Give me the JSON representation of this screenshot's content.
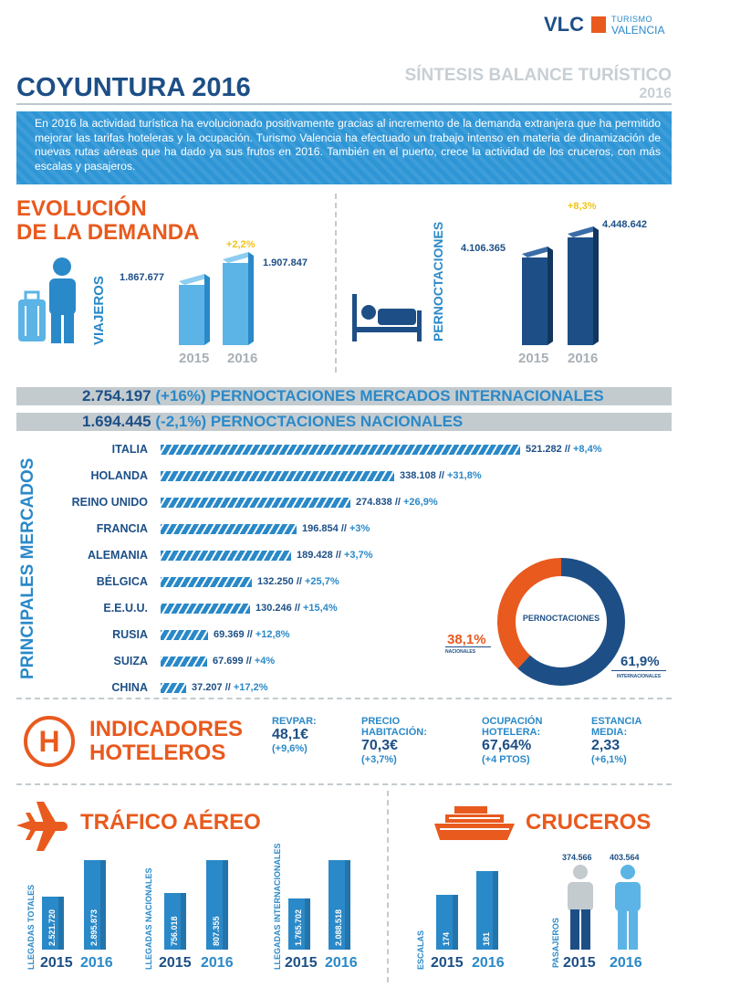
{
  "brand": {
    "vlc": "VLC",
    "line1": "TURISMO",
    "line2": "VALENCIA"
  },
  "title": "COYUNTURA 2016",
  "subtitle": {
    "line1": "SÍNTESIS BALANCE TURÍSTICO",
    "line2": "2016"
  },
  "intro": "En 2016 la actividad turística ha evolucionado positivamente gracias al incremento de la demanda extranjera que ha permitido mejorar las tarifas hoteleras y la ocupación. Turismo Valencia ha efectuado un trabajo intenso en materia de dinamización de nuevas rutas aéreas que ha dado ya sus frutos en 2016. También en el puerto, crece la actividad de los cruceros, con más escalas y pasajeros.",
  "colors": {
    "navy": "#1d4f86",
    "blue": "#2a89c8",
    "light": "#5bb4e5",
    "orange": "#e85a1e",
    "yellow": "#f0c419",
    "grey": "#c3cbcf"
  },
  "demand": {
    "heading1": "EVOLUCIÓN",
    "heading2": "DE LA DEMANDA",
    "viajeros": {
      "label": "VIAJEROS",
      "icon": "traveler-icon",
      "v2015": "1.867.677",
      "v2016": "1.907.847",
      "change": "+2,2%",
      "y2015": "2015",
      "y2016": "2016"
    },
    "pernoctaciones": {
      "label": "PERNOCTACIONES",
      "icon": "bed-icon",
      "v2015": "4.106.365",
      "v2016": "4.448.642",
      "change": "+8,3%",
      "y2015": "2015",
      "y2016": "2016"
    }
  },
  "totals": {
    "intl": {
      "value": "2.754.197",
      "pct": "(+16%)",
      "text": "PERNOCTACIONES MERCADOS INTERNACIONALES"
    },
    "nac": {
      "value": "1.694.445",
      "pct": "(-2,1%)",
      "text": "PERNOCTACIONES NACIONALES"
    }
  },
  "markets_label": "PRINCIPALES MERCADOS",
  "chart_data": [
    {
      "type": "bar",
      "title": "PRINCIPALES MERCADOS",
      "orientation": "horizontal",
      "categories": [
        "ITALIA",
        "HOLANDA",
        "REINO UNIDO",
        "FRANCIA",
        "ALEMANIA",
        "BÉLGICA",
        "E.E.U.U.",
        "RUSIA",
        "SUIZA",
        "CHINA"
      ],
      "values": [
        521282,
        338108,
        274838,
        196854,
        189428,
        132250,
        130246,
        69369,
        67699,
        37207
      ],
      "labels": [
        "521.282",
        "338.108",
        "274.838",
        "196.854",
        "189.428",
        "132.250",
        "130.246",
        "69.369",
        "67.699",
        "37.207"
      ],
      "changes": [
        "+8,4%",
        "+31,8%",
        "+26,9%",
        "+3%",
        "+3,7%",
        "+25,7%",
        "+15,4%",
        "+12,8%",
        "+4%",
        "+17,2%"
      ]
    },
    {
      "type": "pie",
      "title": "PERNOCTACIONES",
      "categories": [
        "NACIONALES",
        "INTERNACIONALES"
      ],
      "values": [
        38.1,
        61.9
      ],
      "labels": [
        "38,1%",
        "61,9%"
      ],
      "colors": [
        "#e85a1e",
        "#1d4f86"
      ]
    }
  ],
  "hotel": {
    "heading1": "INDICADORES",
    "heading2": "HOTELEROS",
    "icon_letter": "H",
    "items": [
      {
        "l1": "REVPAR:",
        "l2": "",
        "value": "48,1€",
        "pct": "(+9,6%)"
      },
      {
        "l1": "PRECIO",
        "l2": "HABITACIÓN:",
        "value": "70,3€",
        "pct": "(+3,7%)"
      },
      {
        "l1": "OCUPACIÓN",
        "l2": "HOTELERA:",
        "value": "67,64%",
        "pct": "(+4 PTOS)"
      },
      {
        "l1": "ESTANCIA",
        "l2": "MEDIA:",
        "value": "2,33",
        "pct": "(+6,1%)"
      }
    ]
  },
  "air": {
    "heading": "TRÁFICO AÉREO",
    "groups": [
      {
        "label": "LLEGADAS TOTALES",
        "v2015": "2.521.720",
        "v2016": "2.895.873"
      },
      {
        "label": "LLEGADAS NACIONALES",
        "v2015": "756.018",
        "v2016": "807.355"
      },
      {
        "label": "LLEGADAS INTERNACIONALES",
        "v2015": "1.765.702",
        "v2016": "2.088.518"
      }
    ],
    "y2015": "2015",
    "y2016": "2016"
  },
  "cruise": {
    "heading": "CRUCEROS",
    "escalas": {
      "label": "ESCALAS",
      "v2015": "174",
      "v2016": "181"
    },
    "pasajeros": {
      "label": "PASAJEROS",
      "v2015": "374.566",
      "v2016": "403.564"
    },
    "y2015": "2015",
    "y2016": "2016"
  }
}
